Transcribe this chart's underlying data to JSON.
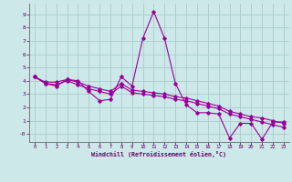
{
  "xlabel": "Windchill (Refroidissement éolien,°C)",
  "bg_color": "#cce8e8",
  "grid_color": "#aacccc",
  "line_color": "#990099",
  "x_ticks": [
    0,
    1,
    2,
    3,
    4,
    5,
    6,
    7,
    8,
    9,
    10,
    11,
    12,
    13,
    14,
    15,
    16,
    17,
    18,
    19,
    20,
    21,
    22,
    23
  ],
  "y_ticks": [
    0,
    1,
    2,
    3,
    4,
    5,
    6,
    7,
    8,
    9
  ],
  "ylim": [
    -0.6,
    9.8
  ],
  "xlim": [
    -0.5,
    23.5
  ],
  "series1_x": [
    0,
    1,
    2,
    3,
    4,
    5,
    6,
    7,
    8,
    9,
    10,
    11,
    12,
    13,
    14,
    15,
    16,
    17,
    18,
    19,
    20,
    21,
    22,
    23
  ],
  "series1_y": [
    4.3,
    3.8,
    3.6,
    4.1,
    4.0,
    3.2,
    2.5,
    2.6,
    4.3,
    3.6,
    7.2,
    9.2,
    7.2,
    3.8,
    2.2,
    1.6,
    1.6,
    1.5,
    -0.3,
    0.8,
    0.8,
    -0.4,
    0.9,
    0.9
  ],
  "series2_x": [
    0,
    1,
    2,
    3,
    4,
    5,
    6,
    7,
    8,
    9,
    10,
    11,
    12,
    13,
    14,
    15,
    16,
    17,
    18,
    19,
    20,
    21,
    22,
    23
  ],
  "series2_y": [
    4.3,
    3.9,
    3.9,
    4.1,
    3.9,
    3.6,
    3.4,
    3.2,
    3.8,
    3.3,
    3.2,
    3.1,
    3.0,
    2.8,
    2.7,
    2.5,
    2.3,
    2.1,
    1.7,
    1.5,
    1.3,
    1.2,
    1.0,
    0.8
  ],
  "series3_x": [
    0,
    1,
    2,
    3,
    4,
    5,
    6,
    7,
    8,
    9,
    10,
    11,
    12,
    13,
    14,
    15,
    16,
    17,
    18,
    19,
    20,
    21,
    22,
    23
  ],
  "series3_y": [
    4.3,
    3.8,
    3.7,
    4.0,
    3.7,
    3.4,
    3.2,
    3.0,
    3.6,
    3.1,
    3.0,
    2.9,
    2.8,
    2.6,
    2.5,
    2.3,
    2.1,
    1.9,
    1.5,
    1.3,
    1.1,
    0.9,
    0.7,
    0.5
  ],
  "y_tick_labels": [
    "-0",
    "1",
    "2",
    "3",
    "4",
    "5",
    "6",
    "7",
    "8",
    "9"
  ]
}
